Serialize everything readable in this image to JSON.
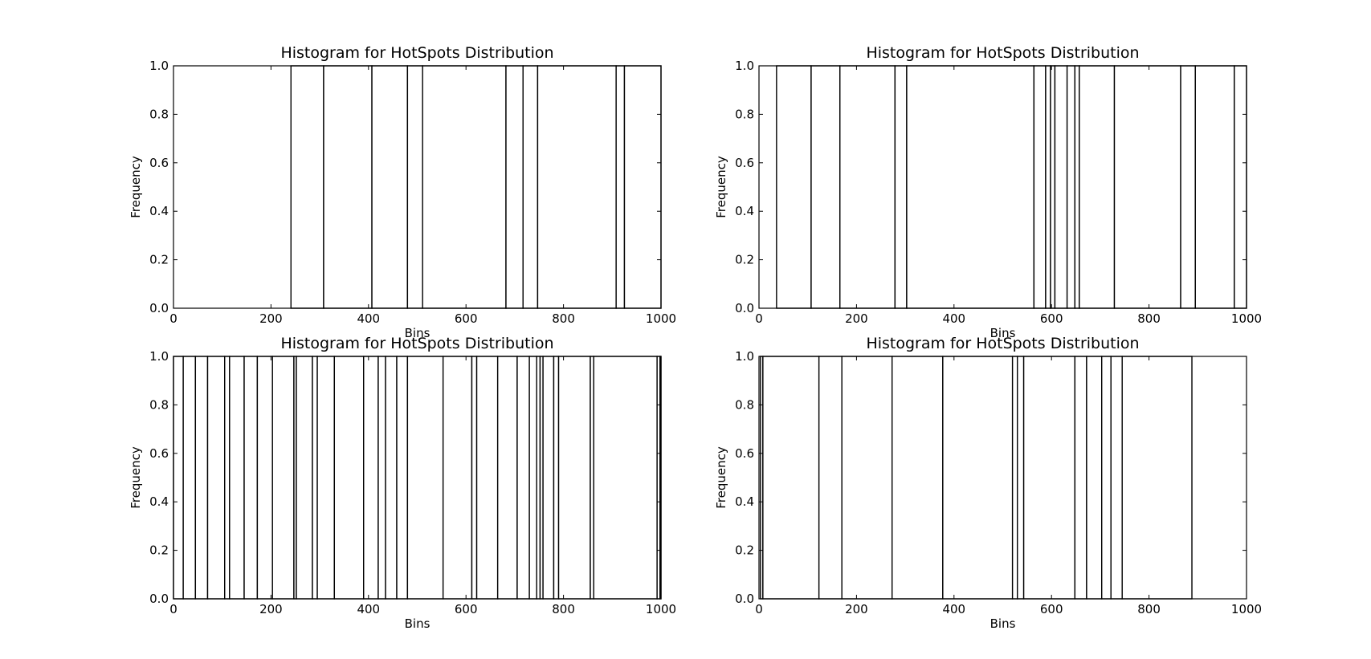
{
  "chart_data": [
    {
      "type": "bar",
      "title": "Histogram for HotSpots Distribution",
      "xlabel": "Bins",
      "ylabel": "Frequency",
      "xlim": [
        0,
        1000
      ],
      "ylim": [
        0,
        1
      ],
      "xticks": [
        "0",
        "200",
        "400",
        "600",
        "800",
        "1000"
      ],
      "yticks": [
        "0.0",
        "0.2",
        "0.4",
        "0.6",
        "0.8",
        "1.0"
      ],
      "bar_color": "#ffffff",
      "edge_color": "#000000",
      "bar_edges": [
        0,
        241,
        308,
        407,
        480,
        511,
        682,
        717,
        747,
        908,
        925,
        1000
      ],
      "bar_values": [
        0,
        1,
        1,
        1,
        1,
        1,
        1,
        1,
        1,
        1,
        1
      ]
    },
    {
      "type": "bar",
      "title": "Histogram for HotSpots Distribution",
      "xlabel": "Bins",
      "ylabel": "Frequency",
      "xlim": [
        0,
        1000
      ],
      "ylim": [
        0,
        1
      ],
      "xticks": [
        "0",
        "200",
        "400",
        "600",
        "800",
        "1000"
      ],
      "yticks": [
        "0.0",
        "0.2",
        "0.4",
        "0.6",
        "0.8",
        "1.0"
      ],
      "bar_color": "#ffffff",
      "edge_color": "#000000",
      "bar_edges": [
        0,
        36,
        107,
        166,
        279,
        303,
        564,
        588,
        598,
        607,
        632,
        648,
        657,
        729,
        865,
        895,
        975,
        1000
      ],
      "bar_values": [
        0,
        1,
        1,
        1,
        1,
        1,
        1,
        1,
        1,
        1,
        1,
        1,
        1,
        1,
        1,
        1,
        1
      ]
    },
    {
      "type": "bar",
      "title": "Histogram for HotSpots Distribution",
      "xlabel": "Bins",
      "ylabel": "Frequency",
      "xlim": [
        0,
        1000
      ],
      "ylim": [
        0,
        1
      ],
      "xticks": [
        "0",
        "200",
        "400",
        "600",
        "800",
        "1000"
      ],
      "yticks": [
        "0.0",
        "0.2",
        "0.4",
        "0.6",
        "0.8",
        "1.0"
      ],
      "bar_color": "#ffffff",
      "edge_color": "#000000",
      "bar_edges": [
        0,
        20,
        45,
        70,
        105,
        115,
        145,
        172,
        203,
        247,
        252,
        285,
        295,
        330,
        390,
        420,
        435,
        458,
        480,
        553,
        612,
        622,
        665,
        705,
        730,
        745,
        752,
        758,
        780,
        790,
        855,
        862,
        992,
        998,
        1000
      ],
      "bar_values": [
        1,
        1,
        1,
        1,
        1,
        1,
        1,
        1,
        1,
        1,
        1,
        1,
        1,
        1,
        1,
        1,
        1,
        1,
        1,
        1,
        1,
        1,
        1,
        1,
        1,
        1,
        1,
        1,
        1,
        1,
        1,
        1,
        1,
        1
      ]
    },
    {
      "type": "bar",
      "title": "Histogram for HotSpots Distribution",
      "xlabel": "Bins",
      "ylabel": "Frequency",
      "xlim": [
        0,
        1000
      ],
      "ylim": [
        0,
        1
      ],
      "xticks": [
        "0",
        "200",
        "400",
        "600",
        "800",
        "1000"
      ],
      "yticks": [
        "0.0",
        "0.2",
        "0.4",
        "0.6",
        "0.8",
        "1.0"
      ],
      "bar_color": "#ffffff",
      "edge_color": "#000000",
      "bar_edges": [
        3,
        8,
        123,
        170,
        273,
        377,
        520,
        530,
        543,
        648,
        672,
        703,
        722,
        745,
        888,
        1000
      ],
      "bar_values": [
        1,
        1,
        1,
        1,
        1,
        1,
        1,
        1,
        1,
        1,
        1,
        1,
        1,
        1,
        0
      ]
    }
  ]
}
